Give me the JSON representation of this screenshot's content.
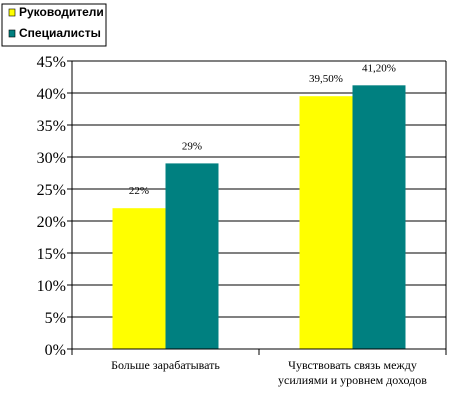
{
  "chart_data": {
    "type": "bar",
    "categories": [
      [
        "Больше зарабатывать"
      ],
      [
        "Чувствовать связь между",
        "усилиями и уровнем доходов"
      ]
    ],
    "series": [
      {
        "name": "Руководители",
        "color": "#ffff00",
        "values": [
          22,
          39.5
        ],
        "labels": [
          "22%",
          "39,50%"
        ]
      },
      {
        "name": "Специалисты",
        "color": "#008080",
        "values": [
          29,
          41.2
        ],
        "labels": [
          "29%",
          "41,20%"
        ]
      }
    ],
    "ylim": [
      0,
      45
    ],
    "yticks": [
      0,
      5,
      10,
      15,
      20,
      25,
      30,
      35,
      40,
      45
    ],
    "ytick_labels": [
      "0%",
      "5%",
      "10%",
      "15%",
      "20%",
      "25%",
      "30%",
      "35%",
      "40%",
      "45%"
    ],
    "grid": true,
    "legend_position": "top-left",
    "title": "",
    "xlabel": "",
    "ylabel": ""
  }
}
